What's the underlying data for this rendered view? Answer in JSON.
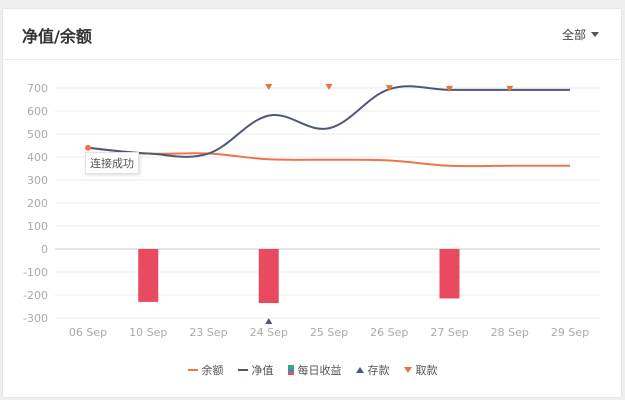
{
  "header": {
    "title": "净值/余额",
    "filter_label": "全部"
  },
  "tooltip": {
    "text": "连接成功"
  },
  "colors": {
    "balance": "#f0744a",
    "net_value": "#4e5a73",
    "daily_income": "#e84a5f",
    "deposit": "#4e5a73",
    "withdraw": "#e8743b",
    "grid": "#eeeeee",
    "axis_text": "#aaaaaa"
  },
  "chart_data": {
    "type": "line",
    "categories": [
      "06 Sep",
      "10 Sep",
      "23 Sep",
      "24 Sep",
      "25 Sep",
      "26 Sep",
      "27 Sep",
      "28 Sep",
      "29 Sep"
    ],
    "ylim": [
      -300,
      700
    ],
    "yticks": [
      700,
      600,
      500,
      400,
      300,
      200,
      100,
      0,
      -100,
      -200,
      -300
    ],
    "series": [
      {
        "name": "余额",
        "kind": "line",
        "values": [
          440,
          415,
          415,
          390,
          388,
          385,
          362,
          362,
          362
        ]
      },
      {
        "name": "净值",
        "kind": "line",
        "values": [
          440,
          415,
          415,
          580,
          525,
          695,
          692,
          692,
          692
        ]
      },
      {
        "name": "每日收益",
        "kind": "bar",
        "values": [
          0,
          -230,
          0,
          -235,
          0,
          0,
          -215,
          0,
          0
        ]
      }
    ],
    "deposit_markers": [
      "24 Sep"
    ],
    "withdraw_markers": [
      "24 Sep",
      "25 Sep",
      "26 Sep",
      "27 Sep",
      "28 Sep"
    ],
    "grid": true,
    "legend_position": "bottom-center"
  },
  "legend": [
    {
      "label": "余额",
      "key": "balance"
    },
    {
      "label": "净值",
      "key": "net_value"
    },
    {
      "label": "每日收益",
      "key": "daily_income"
    },
    {
      "label": "存款",
      "key": "deposit"
    },
    {
      "label": "取款",
      "key": "withdraw"
    }
  ]
}
